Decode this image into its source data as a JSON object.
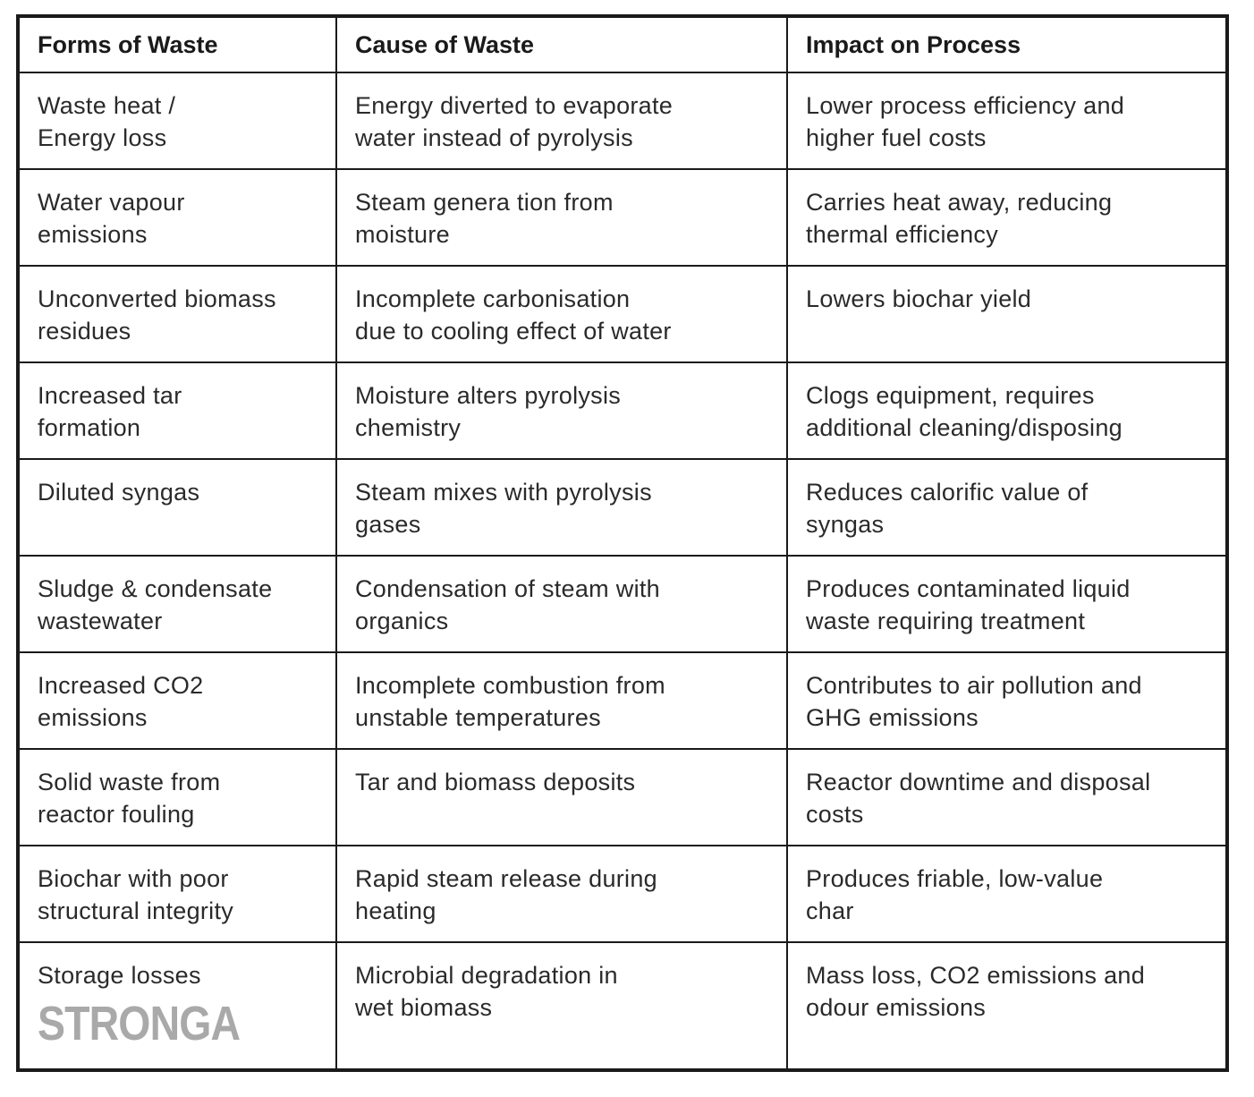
{
  "table": {
    "headers": [
      "Forms of Waste",
      "Cause of Waste",
      "Impact on Process"
    ],
    "rows": [
      [
        "Waste heat /\nEnergy loss",
        "Energy diverted to evaporate\nwater instead of pyrolysis",
        "Lower process efficiency and\nhigher fuel costs"
      ],
      [
        "Water vapour\nemissions",
        "Steam genera tion from\nmoisture",
        "Carries heat away, reducing\nthermal efficiency"
      ],
      [
        "Unconverted biomass\nresidues",
        "Incomplete carbonisation\ndue to cooling effect of water",
        "Lowers biochar yield"
      ],
      [
        "Increased tar\nformation",
        "Moisture alters pyrolysis\nchemistry",
        "Clogs equipment, requires\nadditional cleaning/disposing"
      ],
      [
        "Diluted syngas",
        "Steam mixes with pyrolysis\ngases",
        "Reduces calorific value of\nsyngas"
      ],
      [
        "Sludge & condensate\nwastewater",
        "Condensation of steam with\norganics",
        "Produces contaminated liquid\nwaste requiring treatment"
      ],
      [
        "Increased CO2\nemissions",
        "Incomplete combustion from\nunstable temperatures",
        "Contributes to air pollution and\nGHG emissions"
      ],
      [
        "Solid waste from\nreactor fouling",
        "Tar and biomass deposits",
        "Reactor downtime and disposal\ncosts"
      ],
      [
        "Biochar with poor\nstructural integrity",
        "Rapid steam release during\nheating",
        "Produces friable, low-value\nchar"
      ],
      [
        "Storage losses",
        "Microbial degradation in\nwet biomass",
        "Mass loss, CO2 emissions and\nodour emissions"
      ]
    ]
  },
  "logo": {
    "text": "STRONGA",
    "color": "#a9a9a9"
  },
  "colors": {
    "border": "#1a1a1a",
    "text": "#2a2a2a",
    "background": "#ffffff"
  }
}
